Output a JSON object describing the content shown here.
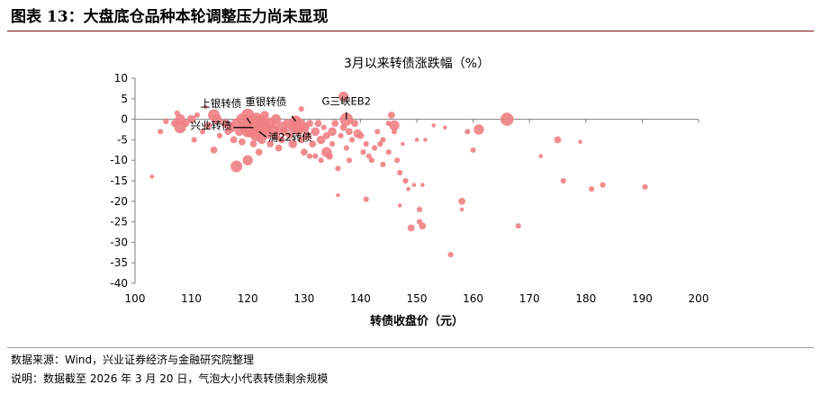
{
  "figure_title": "图表 13：大盘底仓品种本轮调整压力尚未显现",
  "source_note": "数据来源：Wind，兴业证券经济与金融研究院整理",
  "remark_note": "说明：数据截至 2026 年 3 月 20 日，气泡大小代表转债剩余规模",
  "colors": {
    "bubble": "#ee7f84",
    "axis": "#7f7f7f",
    "label_line": "#000000",
    "rule": "#7a1418"
  },
  "chart_data": {
    "type": "scatter",
    "title": "3月以来转债涨跌幅（%）",
    "xlabel": "转债收盘价（元）",
    "ylabel": "",
    "xlim": [
      100,
      200
    ],
    "ylim": [
      -40,
      10
    ],
    "xticks": [
      100,
      110,
      120,
      130,
      140,
      150,
      160,
      170,
      180,
      190,
      200
    ],
    "yticks": [
      10,
      5,
      0,
      -5,
      -10,
      -15,
      -20,
      -25,
      -30,
      -35,
      -40
    ],
    "grid": false,
    "legend": "none",
    "bubble_size": "转债剩余规模",
    "points": [
      {
        "x": 103,
        "y": -14,
        "s": 1
      },
      {
        "x": 104.5,
        "y": -3,
        "s": 2
      },
      {
        "x": 105.5,
        "y": -0.5,
        "s": 2
      },
      {
        "x": 107,
        "y": -1,
        "s": 3
      },
      {
        "x": 107.5,
        "y": 1.5,
        "s": 2
      },
      {
        "x": 108,
        "y": 0,
        "s": 5
      },
      {
        "x": 108,
        "y": -2,
        "s": 6
      },
      {
        "x": 109,
        "y": -1,
        "s": 3
      },
      {
        "x": 110,
        "y": 0,
        "s": 4
      },
      {
        "x": 110.5,
        "y": -5,
        "s": 2
      },
      {
        "x": 111,
        "y": 1,
        "s": 2
      },
      {
        "x": 112,
        "y": -3,
        "s": 2
      },
      {
        "x": 112.5,
        "y": 3,
        "s": 1
      },
      {
        "x": 113,
        "y": -1.5,
        "s": 3
      },
      {
        "x": 114,
        "y": 1,
        "s": 6
      },
      {
        "x": 114.5,
        "y": 0,
        "s": 5
      },
      {
        "x": 114,
        "y": -7.5,
        "s": 3
      },
      {
        "x": 115,
        "y": -4,
        "s": 2
      },
      {
        "x": 116,
        "y": -1,
        "s": 4
      },
      {
        "x": 116.5,
        "y": -3,
        "s": 3
      },
      {
        "x": 117,
        "y": -2,
        "s": 5
      },
      {
        "x": 117.5,
        "y": -5,
        "s": 3
      },
      {
        "x": 118,
        "y": -11.5,
        "s": 6
      },
      {
        "x": 118,
        "y": -1,
        "s": 5
      },
      {
        "x": 118.5,
        "y": -3,
        "s": 4
      },
      {
        "x": 119,
        "y": 0,
        "s": 6
      },
      {
        "x": 119,
        "y": -5.5,
        "s": 3
      },
      {
        "x": 119.5,
        "y": -2,
        "s": 5
      },
      {
        "x": 120,
        "y": -10,
        "s": 5
      },
      {
        "x": 120,
        "y": -3,
        "s": 6
      },
      {
        "x": 120,
        "y": 1,
        "s": 7
      },
      {
        "x": 120.5,
        "y": -1,
        "s": 9
      },
      {
        "x": 121,
        "y": -6,
        "s": 3
      },
      {
        "x": 121,
        "y": -2,
        "s": 12
      },
      {
        "x": 121.5,
        "y": -4,
        "s": 6
      },
      {
        "x": 121.5,
        "y": 0,
        "s": 7
      },
      {
        "x": 122,
        "y": -3,
        "s": 8
      },
      {
        "x": 122,
        "y": -8,
        "s": 3
      },
      {
        "x": 122.5,
        "y": -1,
        "s": 9
      },
      {
        "x": 122.5,
        "y": -5,
        "s": 4
      },
      {
        "x": 123,
        "y": -2,
        "s": 7
      },
      {
        "x": 123,
        "y": 1,
        "s": 4
      },
      {
        "x": 123.5,
        "y": -3.5,
        "s": 5
      },
      {
        "x": 124,
        "y": -1,
        "s": 6
      },
      {
        "x": 124,
        "y": -6,
        "s": 3
      },
      {
        "x": 124.5,
        "y": -2.5,
        "s": 5
      },
      {
        "x": 125,
        "y": -4,
        "s": 4
      },
      {
        "x": 125,
        "y": 0,
        "s": 5
      },
      {
        "x": 125.5,
        "y": -7,
        "s": 3
      },
      {
        "x": 126,
        "y": -2,
        "s": 6
      },
      {
        "x": 126,
        "y": -5,
        "s": 3
      },
      {
        "x": 126.5,
        "y": -3,
        "s": 4
      },
      {
        "x": 127,
        "y": -1,
        "s": 4
      },
      {
        "x": 127.5,
        "y": -4,
        "s": 3
      },
      {
        "x": 128,
        "y": -2,
        "s": 5
      },
      {
        "x": 128,
        "y": -6,
        "s": 4
      },
      {
        "x": 128.5,
        "y": -0.5,
        "s": 6
      },
      {
        "x": 129,
        "y": -1.5,
        "s": 8
      },
      {
        "x": 129,
        "y": -3,
        "s": 4
      },
      {
        "x": 129.5,
        "y": 2.5,
        "s": 2
      },
      {
        "x": 129.5,
        "y": -5,
        "s": 3
      },
      {
        "x": 130,
        "y": -2,
        "s": 5
      },
      {
        "x": 130,
        "y": -8,
        "s": 3
      },
      {
        "x": 130.5,
        "y": -4,
        "s": 4
      },
      {
        "x": 131,
        "y": -1,
        "s": 3
      },
      {
        "x": 131,
        "y": -9,
        "s": 2
      },
      {
        "x": 131.5,
        "y": -6,
        "s": 3
      },
      {
        "x": 132,
        "y": -3,
        "s": 4
      },
      {
        "x": 132,
        "y": -9,
        "s": 2
      },
      {
        "x": 132.5,
        "y": -1,
        "s": 3
      },
      {
        "x": 133,
        "y": -5,
        "s": 4
      },
      {
        "x": 133,
        "y": -10,
        "s": 2
      },
      {
        "x": 133.5,
        "y": -2,
        "s": 2
      },
      {
        "x": 134,
        "y": -8,
        "s": 5
      },
      {
        "x": 134,
        "y": -4,
        "s": 3
      },
      {
        "x": 134.5,
        "y": -9,
        "s": 3
      },
      {
        "x": 135,
        "y": -3,
        "s": 4
      },
      {
        "x": 135,
        "y": -6,
        "s": 2
      },
      {
        "x": 135.5,
        "y": -1,
        "s": 3
      },
      {
        "x": 136,
        "y": -12,
        "s": 2
      },
      {
        "x": 136,
        "y": -18.5,
        "s": 1
      },
      {
        "x": 136.5,
        "y": -4,
        "s": 2
      },
      {
        "x": 137,
        "y": -2,
        "s": 3
      },
      {
        "x": 137,
        "y": 5.5,
        "s": 5
      },
      {
        "x": 137.5,
        "y": 0,
        "s": 7
      },
      {
        "x": 137.5,
        "y": -7,
        "s": 2
      },
      {
        "x": 138,
        "y": -3,
        "s": 3
      },
      {
        "x": 138,
        "y": -10,
        "s": 2
      },
      {
        "x": 138.5,
        "y": -5,
        "s": 2
      },
      {
        "x": 139,
        "y": -1,
        "s": 3
      },
      {
        "x": 139.5,
        "y": -3.5,
        "s": 4
      },
      {
        "x": 140,
        "y": -4,
        "s": 3
      },
      {
        "x": 140.5,
        "y": -8,
        "s": 2
      },
      {
        "x": 141,
        "y": -6,
        "s": 2
      },
      {
        "x": 141,
        "y": -19.5,
        "s": 2
      },
      {
        "x": 141.5,
        "y": -9,
        "s": 2
      },
      {
        "x": 142,
        "y": -10,
        "s": 2
      },
      {
        "x": 142.5,
        "y": -7,
        "s": 2
      },
      {
        "x": 143,
        "y": -3,
        "s": 2
      },
      {
        "x": 143.5,
        "y": -6,
        "s": 2
      },
      {
        "x": 144,
        "y": -5,
        "s": 2
      },
      {
        "x": 144,
        "y": -11,
        "s": 2
      },
      {
        "x": 145,
        "y": -1,
        "s": 2
      },
      {
        "x": 145,
        "y": -8,
        "s": 2
      },
      {
        "x": 145.5,
        "y": 1,
        "s": 3
      },
      {
        "x": 146,
        "y": -3,
        "s": 2
      },
      {
        "x": 146,
        "y": -1.5,
        "s": 5
      },
      {
        "x": 146.5,
        "y": -10,
        "s": 2
      },
      {
        "x": 147,
        "y": -13,
        "s": 2
      },
      {
        "x": 147,
        "y": -21,
        "s": 1
      },
      {
        "x": 147.5,
        "y": -6,
        "s": 1
      },
      {
        "x": 148,
        "y": -15,
        "s": 2
      },
      {
        "x": 148.5,
        "y": -17,
        "s": 1
      },
      {
        "x": 149,
        "y": -26.5,
        "s": 3
      },
      {
        "x": 149.5,
        "y": -16,
        "s": 1
      },
      {
        "x": 150,
        "y": -5,
        "s": 1
      },
      {
        "x": 150.5,
        "y": -25,
        "s": 2
      },
      {
        "x": 150.5,
        "y": -22,
        "s": 2
      },
      {
        "x": 151,
        "y": -26,
        "s": 3
      },
      {
        "x": 151,
        "y": -16,
        "s": 1
      },
      {
        "x": 151.5,
        "y": -5,
        "s": 1
      },
      {
        "x": 153,
        "y": -1.5,
        "s": 1
      },
      {
        "x": 155,
        "y": -2,
        "s": 1
      },
      {
        "x": 156,
        "y": -33,
        "s": 2
      },
      {
        "x": 158,
        "y": -20,
        "s": 3
      },
      {
        "x": 158,
        "y": -22,
        "s": 1
      },
      {
        "x": 159,
        "y": -3,
        "s": 2
      },
      {
        "x": 160,
        "y": -7.5,
        "s": 2
      },
      {
        "x": 161,
        "y": -2.5,
        "s": 5
      },
      {
        "x": 166,
        "y": 0,
        "s": 7
      },
      {
        "x": 168,
        "y": -26,
        "s": 2
      },
      {
        "x": 172,
        "y": -9,
        "s": 1
      },
      {
        "x": 175,
        "y": -5,
        "s": 3
      },
      {
        "x": 176,
        "y": -15,
        "s": 2
      },
      {
        "x": 179,
        "y": -5.5,
        "s": 1
      },
      {
        "x": 181,
        "y": -17,
        "s": 2
      },
      {
        "x": 183,
        "y": -16,
        "s": 2
      },
      {
        "x": 190.5,
        "y": -16.5,
        "s": 2
      }
    ],
    "annotations": [
      {
        "text": "重银转债",
        "x": 128.5,
        "y": -0.5,
        "position": "upper-left"
      },
      {
        "text": "G三峡EB2",
        "x": 137.5,
        "y": 0,
        "position": "above"
      },
      {
        "text": "上银转债",
        "x": 120.5,
        "y": -1,
        "position": "upper-left"
      },
      {
        "text": "兴业转债",
        "x": 121,
        "y": -2,
        "position": "left"
      },
      {
        "text": "浦22转债",
        "x": 122,
        "y": -3,
        "position": "right"
      }
    ]
  }
}
